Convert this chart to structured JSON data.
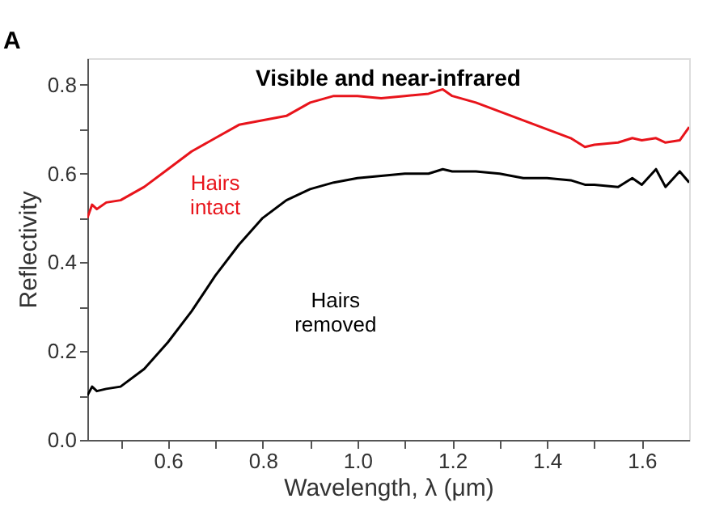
{
  "chart_data": {
    "type": "line",
    "title": "Visible and near-infrared",
    "xlabel": "Wavelength, λ (μm)",
    "ylabel": "Reflectivity",
    "annotations": [
      "A"
    ],
    "xlim": [
      0.43,
      1.7
    ],
    "ylim": [
      0,
      0.86
    ],
    "xticks": [
      {
        "value": 0.5,
        "label": null
      },
      {
        "value": 0.6,
        "label": "0.6"
      },
      {
        "value": 0.7,
        "label": null
      },
      {
        "value": 0.8,
        "label": "0.8"
      },
      {
        "value": 0.9,
        "label": null
      },
      {
        "value": 1,
        "label": "1.0"
      },
      {
        "value": 1.1,
        "label": null
      },
      {
        "value": 1.2,
        "label": "1.2"
      },
      {
        "value": 1.3,
        "label": null
      },
      {
        "value": 1.4,
        "label": "1.4"
      },
      {
        "value": 1.5,
        "label": null
      },
      {
        "value": 1.6,
        "label": "1.6"
      }
    ],
    "yticks": [
      {
        "value": 0,
        "label": "0.0"
      },
      {
        "value": 0.1,
        "label": null
      },
      {
        "value": 0.2,
        "label": "0.2"
      },
      {
        "value": 0.3,
        "label": null
      },
      {
        "value": 0.4,
        "label": "0.4"
      },
      {
        "value": 0.5,
        "label": null
      },
      {
        "value": 0.6,
        "label": "0.6"
      },
      {
        "value": 0.7,
        "label": null
      },
      {
        "value": 0.8,
        "label": "0.8"
      }
    ],
    "grid": false,
    "legend": false,
    "marker": "none",
    "line_style": "solid",
    "x": [
      0.43,
      0.44,
      0.45,
      0.47,
      0.5,
      0.55,
      0.6,
      0.65,
      0.7,
      0.75,
      0.8,
      0.85,
      0.9,
      0.95,
      1.0,
      1.05,
      1.1,
      1.15,
      1.18,
      1.2,
      1.25,
      1.3,
      1.35,
      1.4,
      1.45,
      1.48,
      1.5,
      1.55,
      1.58,
      1.6,
      1.63,
      1.65,
      1.68,
      1.7
    ],
    "series": [
      {
        "name": "Hairs intact",
        "color": "#e8141b",
        "values": [
          0.5,
          0.53,
          0.52,
          0.535,
          0.54,
          0.57,
          0.61,
          0.65,
          0.68,
          0.71,
          0.72,
          0.73,
          0.76,
          0.775,
          0.775,
          0.77,
          0.775,
          0.78,
          0.79,
          0.775,
          0.76,
          0.74,
          0.72,
          0.7,
          0.68,
          0.66,
          0.665,
          0.67,
          0.68,
          0.675,
          0.68,
          0.67,
          0.675,
          0.705
        ]
      },
      {
        "name": "Hairs removed",
        "color": "#000000",
        "values": [
          0.1,
          0.12,
          0.11,
          0.115,
          0.12,
          0.16,
          0.22,
          0.29,
          0.37,
          0.44,
          0.5,
          0.54,
          0.565,
          0.58,
          0.59,
          0.595,
          0.6,
          0.6,
          0.61,
          0.605,
          0.605,
          0.6,
          0.59,
          0.59,
          0.585,
          0.575,
          0.575,
          0.57,
          0.59,
          0.575,
          0.61,
          0.57,
          0.605,
          0.58
        ]
      }
    ]
  }
}
